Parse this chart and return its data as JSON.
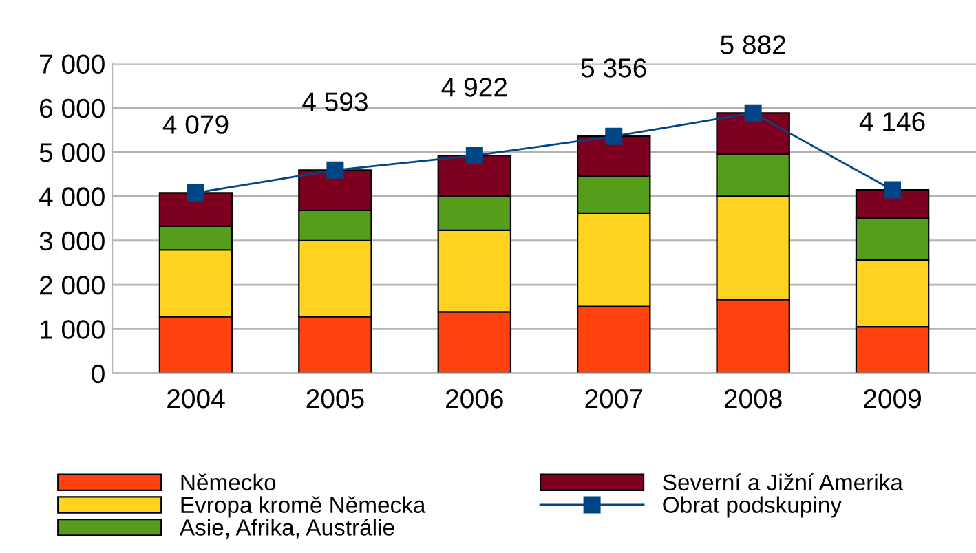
{
  "chart_data": {
    "type": "bar",
    "stacked": true,
    "categories": [
      "2004",
      "2005",
      "2006",
      "2007",
      "2008",
      "2009"
    ],
    "series": [
      {
        "name": "Německo",
        "color": "#ff420e",
        "values": [
          1280,
          1280,
          1390,
          1510,
          1670,
          1050
        ]
      },
      {
        "name": "Evropa kromě Německa",
        "color": "#ffd320",
        "values": [
          1510,
          1720,
          1840,
          2110,
          2330,
          1510
        ]
      },
      {
        "name": "Asie, Afrika, Austrálie",
        "color": "#579d1c",
        "values": [
          540,
          680,
          770,
          840,
          960,
          950
        ]
      },
      {
        "name": "Severní a Jižní Amerika",
        "color": "#7e0021",
        "values": [
          749,
          913,
          922,
          896,
          922,
          636
        ]
      },
      {
        "name": "Obrat podskupiny",
        "color": "#004586",
        "type": "line",
        "marker": "square",
        "data_labels": true,
        "values": [
          4079,
          4593,
          4922,
          5356,
          5882,
          4146
        ],
        "value_labels": [
          "4 079",
          "4 593",
          "4 922",
          "5 356",
          "5 882",
          "4 146"
        ]
      }
    ],
    "ylim": [
      0,
      7000
    ],
    "yticks": [
      {
        "value": 0,
        "label": "0"
      },
      {
        "value": 1000,
        "label": "1 000"
      },
      {
        "value": 2000,
        "label": "2 000"
      },
      {
        "value": 3000,
        "label": "3 000"
      },
      {
        "value": 4000,
        "label": "4 000"
      },
      {
        "value": 5000,
        "label": "5 000"
      },
      {
        "value": 6000,
        "label": "6 000"
      },
      {
        "value": 7000,
        "label": "7 000"
      }
    ],
    "grid": "y",
    "legend": "bottom"
  }
}
